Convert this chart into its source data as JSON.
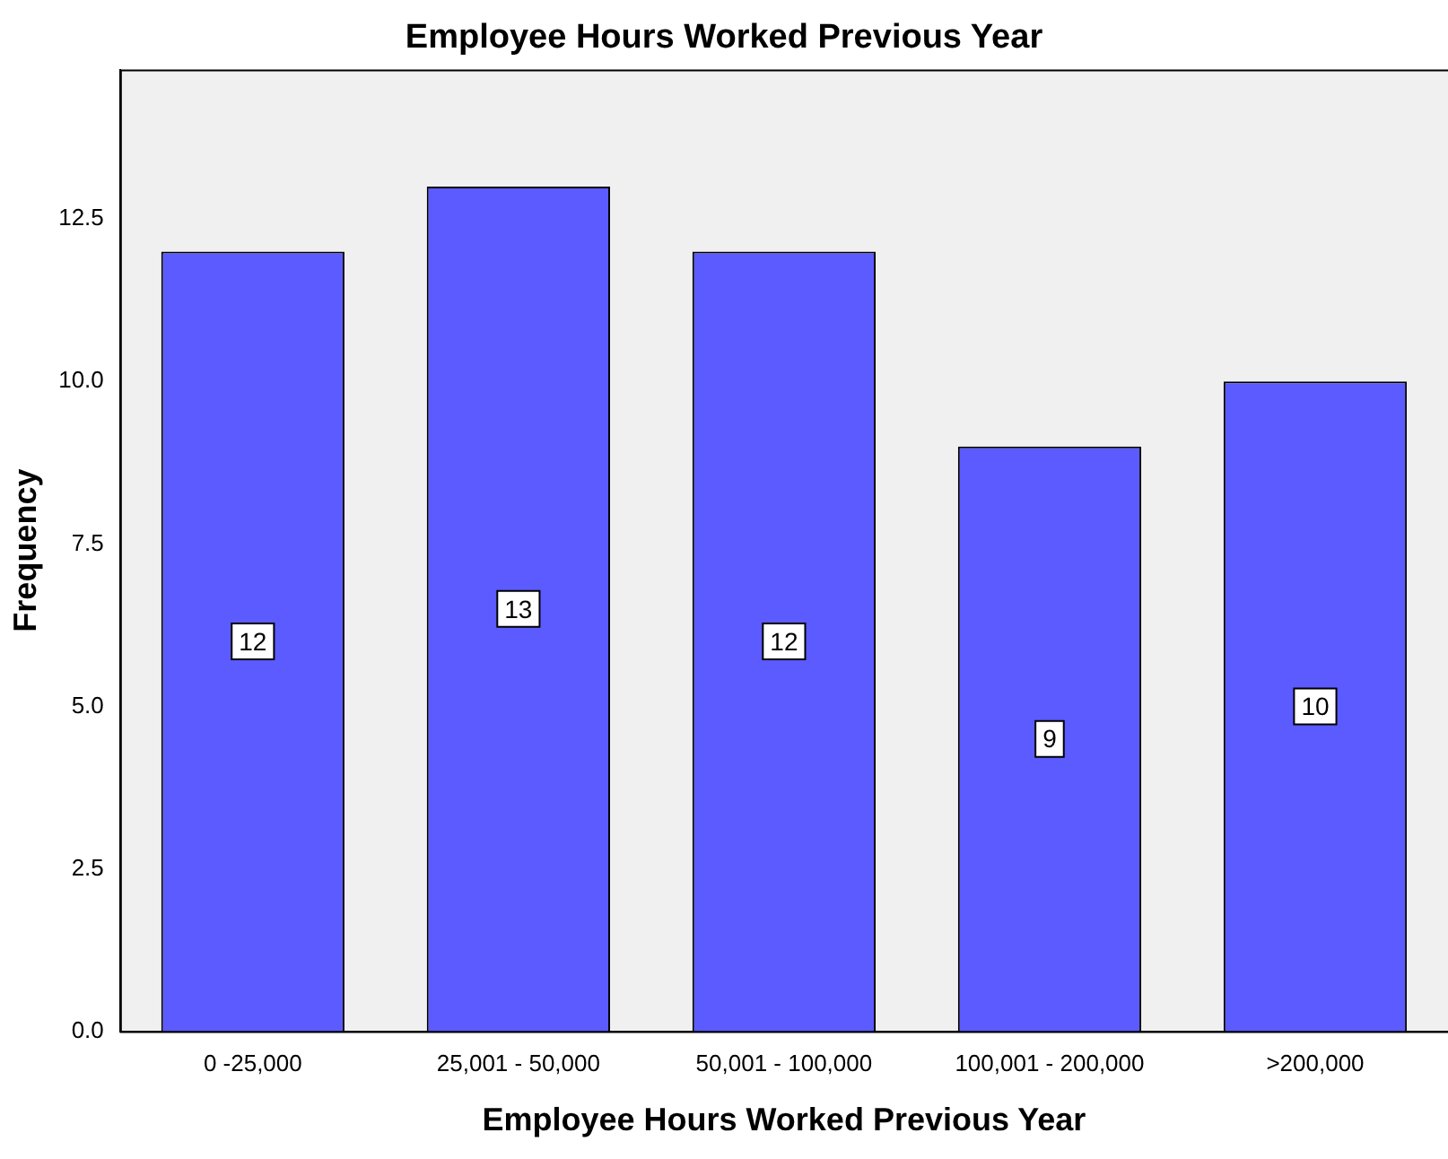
{
  "chart_data": {
    "type": "bar",
    "title": "Employee Hours Worked Previous Year",
    "xlabel": "Employee Hours Worked Previous Year",
    "ylabel": "Frequency",
    "categories": [
      "0 -25,000",
      "25,001 - 50,000",
      "50,001 - 100,000",
      "100,001 - 200,000",
      ">200,000"
    ],
    "values": [
      12,
      13,
      12,
      9,
      10
    ],
    "color": "#5b5bff",
    "ylim": [
      0,
      14.8
    ],
    "yticks": [
      {
        "value": 0,
        "label": "0.0"
      },
      {
        "value": 2.5,
        "label": "2.5"
      },
      {
        "value": 5,
        "label": "5.0"
      },
      {
        "value": 7.5,
        "label": "7.5"
      },
      {
        "value": 10,
        "label": "10.0"
      },
      {
        "value": 12.5,
        "label": "12.5"
      }
    ],
    "grid": false,
    "legend": false,
    "data_labels": true
  }
}
